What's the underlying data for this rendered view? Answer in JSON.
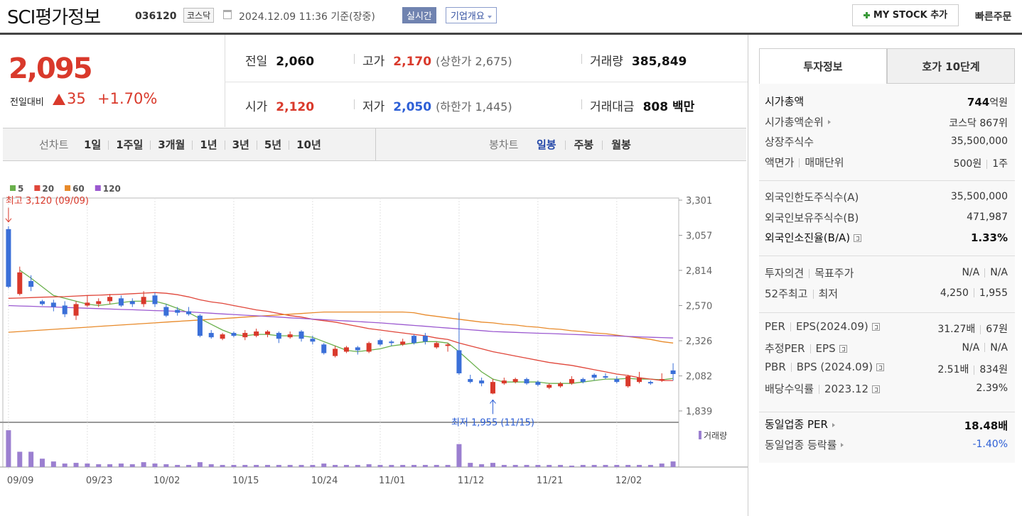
{
  "header": {
    "name": "SCI평가정보",
    "code": "036120",
    "market": "코스닥",
    "datetime": "2024.12.09 11:36",
    "basis": "기준(장중)",
    "realtime": "실시간",
    "overview": "기업개요",
    "mystock": "MY STOCK 추가",
    "quick_order": "빠른주문"
  },
  "quote": {
    "price": "2,095",
    "change_label": "전일대비",
    "change": "35",
    "change_rate": "+1.70%",
    "up_color": "#d9392b",
    "fields": [
      {
        "label": "전일",
        "value": "2,060",
        "color": "#111111"
      },
      {
        "label": "고가",
        "value": "2,170",
        "note": "(상한가 2,675)",
        "color": "#d9392b"
      },
      {
        "label": "거래량",
        "value": "385,849",
        "color": "#111111"
      },
      {
        "label": "시가",
        "value": "2,120",
        "color": "#d9392b"
      },
      {
        "label": "저가",
        "value": "2,050",
        "note": "(하한가 1,445)",
        "color": "#2d5fd6"
      },
      {
        "label": "거래대금",
        "value": "808 백만",
        "color": "#111111"
      }
    ]
  },
  "chart_tabs": {
    "line_label": "선차트",
    "line_periods": [
      "1일",
      "1주일",
      "3개월",
      "1년",
      "3년",
      "5년",
      "10년"
    ],
    "candle_label": "봉차트",
    "candle_periods": [
      "일봉",
      "주봉",
      "월봉"
    ],
    "active_candle": 0
  },
  "chart_data": {
    "type": "candlestick",
    "categories": [
      "09/09",
      null,
      null,
      null,
      null,
      null,
      null,
      "09/23",
      null,
      null,
      null,
      null,
      null,
      "10/02",
      null,
      null,
      null,
      null,
      null,
      null,
      "10/15",
      null,
      null,
      null,
      null,
      null,
      null,
      "10/24",
      null,
      null,
      null,
      null,
      null,
      "11/01",
      null,
      null,
      null,
      null,
      null,
      null,
      "11/12",
      null,
      null,
      null,
      null,
      null,
      null,
      "11/21",
      null,
      null,
      null,
      null,
      null,
      null,
      "12/02",
      null,
      null,
      null,
      null,
      null
    ],
    "open": [
      3100,
      2650,
      2740,
      2600,
      2590,
      2570,
      2500,
      2570,
      2580,
      2600,
      2620,
      2600,
      2580,
      2640,
      2560,
      2540,
      2530,
      2500,
      2380,
      2340,
      2380,
      2350,
      2360,
      2370,
      2380,
      2350,
      2390,
      2340,
      2300,
      2220,
      2250,
      2280,
      2250,
      2330,
      2320,
      2300,
      2360,
      2360,
      2280,
      2290,
      2260,
      2060,
      2050,
      1960,
      2030,
      2040,
      2060,
      2040,
      2000,
      2010,
      2030,
      2060,
      2090,
      2080,
      2060,
      2010,
      2040,
      2040,
      2050,
      2120
    ],
    "high": [
      3120,
      2840,
      2780,
      2610,
      2610,
      2600,
      2600,
      2640,
      2620,
      2650,
      2640,
      2620,
      2670,
      2660,
      2580,
      2560,
      2560,
      2510,
      2400,
      2380,
      2390,
      2400,
      2410,
      2400,
      2390,
      2390,
      2400,
      2360,
      2310,
      2290,
      2290,
      2290,
      2320,
      2340,
      2330,
      2340,
      2370,
      2380,
      2320,
      2310,
      2520,
      2090,
      2070,
      2060,
      2070,
      2070,
      2070,
      2050,
      2030,
      2040,
      2080,
      2070,
      2100,
      2100,
      2080,
      2090,
      2110,
      2050,
      2100,
      2170
    ],
    "low": [
      2690,
      2640,
      2670,
      2570,
      2530,
      2490,
      2470,
      2560,
      2560,
      2580,
      2560,
      2560,
      2560,
      2560,
      2490,
      2500,
      2500,
      2350,
      2340,
      2330,
      2350,
      2330,
      2350,
      2350,
      2310,
      2340,
      2320,
      2300,
      2230,
      2210,
      2240,
      2230,
      2240,
      2290,
      2290,
      2290,
      2300,
      2300,
      2270,
      2250,
      2090,
      2030,
      2010,
      1955,
      2020,
      2030,
      2020,
      2010,
      1990,
      2000,
      2020,
      2030,
      2050,
      2060,
      2030,
      2000,
      2030,
      2020,
      2040,
      2050
    ],
    "close": [
      2700,
      2800,
      2700,
      2580,
      2560,
      2510,
      2580,
      2590,
      2600,
      2630,
      2570,
      2580,
      2630,
      2580,
      2500,
      2520,
      2510,
      2360,
      2350,
      2370,
      2360,
      2380,
      2390,
      2390,
      2340,
      2370,
      2340,
      2320,
      2240,
      2270,
      2280,
      2260,
      2310,
      2300,
      2310,
      2320,
      2310,
      2320,
      2310,
      2300,
      2100,
      2040,
      2030,
      2040,
      2050,
      2060,
      2030,
      2020,
      2020,
      2030,
      2060,
      2040,
      2070,
      2070,
      2040,
      2080,
      2070,
      2030,
      2060,
      2095
    ],
    "up_color": "#d9392b",
    "down_color": "#3a6fd8",
    "ylim": [
      1770,
      3360
    ],
    "yticks": [
      {
        "value": 3301,
        "label": "3,301"
      },
      {
        "value": 3057,
        "label": "3,057"
      },
      {
        "value": 2814,
        "label": "2,814"
      },
      {
        "value": 2570,
        "label": "2,570"
      },
      {
        "value": 2326,
        "label": "2,326"
      },
      {
        "value": 2082,
        "label": "2,082"
      },
      {
        "value": 1839,
        "label": "1,839"
      }
    ],
    "annotations": [
      {
        "text": "최고 3,120 (09/09)",
        "color": "#d9392b",
        "kind": "high"
      },
      {
        "text": "최저 1,955 (11/15)",
        "color": "#2d5fd6",
        "kind": "low"
      }
    ],
    "series": [
      {
        "name": "5",
        "color": "#6ab04c",
        "values": [
          null,
          2815,
          2760,
          2700,
          2640,
          2620,
          2600,
          2580,
          2570,
          2580,
          2590,
          2600,
          2600,
          2600,
          2580,
          2550,
          2520,
          2480,
          2440,
          2400,
          2370,
          2360,
          2370,
          2370,
          2360,
          2360,
          2360,
          2350,
          2320,
          2290,
          2260,
          2250,
          2260,
          2270,
          2290,
          2300,
          2310,
          2320,
          2320,
          2310,
          2250,
          2180,
          2110,
          2060,
          2040,
          2040,
          2040,
          2040,
          2030,
          2030,
          2030,
          2040,
          2050,
          2060,
          2060,
          2065,
          2060,
          2060,
          2055,
          2065
        ]
      },
      {
        "name": "20",
        "color": "#e0463a",
        "values": [
          2620,
          2622,
          2625,
          2628,
          2630,
          2632,
          2636,
          2640,
          2642,
          2645,
          2648,
          2652,
          2656,
          2660,
          2655,
          2645,
          2630,
          2610,
          2595,
          2585,
          2570,
          2555,
          2540,
          2530,
          2515,
          2500,
          2490,
          2475,
          2465,
          2455,
          2440,
          2425,
          2410,
          2400,
          2390,
          2380,
          2370,
          2360,
          2345,
          2335,
          2310,
          2290,
          2270,
          2250,
          2235,
          2220,
          2205,
          2190,
          2175,
          2165,
          2155,
          2140,
          2125,
          2110,
          2095,
          2085,
          2070,
          2060,
          2050,
          2050
        ]
      },
      {
        "name": "60",
        "color": "#e88a2a",
        "values": [
          2385,
          2390,
          2395,
          2400,
          2405,
          2410,
          2415,
          2420,
          2425,
          2430,
          2435,
          2440,
          2445,
          2450,
          2455,
          2460,
          2465,
          2470,
          2475,
          2480,
          2485,
          2490,
          2495,
          2500,
          2505,
          2510,
          2515,
          2520,
          2525,
          2525,
          2525,
          2525,
          2525,
          2525,
          2525,
          2525,
          2520,
          2505,
          2495,
          2485,
          2475,
          2465,
          2455,
          2450,
          2440,
          2435,
          2425,
          2420,
          2410,
          2405,
          2395,
          2390,
          2380,
          2375,
          2365,
          2355,
          2345,
          2335,
          2320,
          2310
        ]
      },
      {
        "name": "120",
        "color": "#9b59d0",
        "values": [
          2570,
          2567,
          2565,
          2562,
          2560,
          2557,
          2554,
          2551,
          2549,
          2546,
          2543,
          2541,
          2538,
          2535,
          2533,
          2530,
          2526,
          2521,
          2517,
          2512,
          2508,
          2503,
          2499,
          2494,
          2490,
          2485,
          2481,
          2476,
          2472,
          2467,
          2463,
          2459,
          2454,
          2450,
          2444,
          2438,
          2432,
          2426,
          2420,
          2414,
          2408,
          2402,
          2396,
          2390,
          2387,
          2384,
          2381,
          2378,
          2376,
          2373,
          2370,
          2367,
          2364,
          2361,
          2359,
          2356,
          2353,
          2350,
          2348,
          2345
        ]
      }
    ],
    "volume": {
      "name": "거래량",
      "color": "#9b7fd0",
      "ylim": [
        0,
        2600000
      ],
      "values": [
        2544000,
        1056000,
        1056000,
        576000,
        384000,
        240000,
        288000,
        240000,
        192000,
        192000,
        240000,
        192000,
        336000,
        240000,
        192000,
        144000,
        144000,
        336000,
        192000,
        144000,
        144000,
        144000,
        144000,
        144000,
        144000,
        144000,
        144000,
        144000,
        240000,
        144000,
        144000,
        144000,
        192000,
        144000,
        144000,
        144000,
        144000,
        144000,
        144000,
        144000,
        1584000,
        288000,
        192000,
        288000,
        144000,
        144000,
        144000,
        144000,
        144000,
        144000,
        96000,
        144000,
        144000,
        144000,
        144000,
        144000,
        144000,
        144000,
        240000,
        385849
      ]
    }
  },
  "info": {
    "tabs": [
      "투자정보",
      "호가 10단계"
    ],
    "active_tab": 0,
    "sections": [
      {
        "rows": [
          {
            "label": [
              "시가총액"
            ],
            "value": [
              "744",
              "억원"
            ],
            "strong": true
          },
          {
            "label": [
              "시가총액순위"
            ],
            "arrow": true,
            "value": [
              "코스닥 867위"
            ]
          },
          {
            "label": [
              "상장주식수"
            ],
            "value": [
              "35,500,000"
            ]
          },
          {
            "label": [
              "액면가",
              "매매단위"
            ],
            "value": [
              "500원",
              "1주"
            ]
          }
        ]
      },
      {
        "rows": [
          {
            "label": [
              "외국인한도주식수(A)"
            ],
            "value": [
              "35,500,000"
            ]
          },
          {
            "label": [
              "외국인보유주식수(B)"
            ],
            "value": [
              "471,987"
            ]
          },
          {
            "label": [
              "외국인소진율(B/A)"
            ],
            "help": true,
            "value": [
              "1.33%"
            ],
            "strong": true
          }
        ]
      },
      {
        "rows": [
          {
            "label": [
              "투자의견",
              "목표주가"
            ],
            "value": [
              "N/A",
              "N/A"
            ]
          },
          {
            "label": [
              "52주최고",
              "최저"
            ],
            "value": [
              "4,250",
              "1,955"
            ]
          }
        ]
      },
      {
        "rows": [
          {
            "label": [
              "PER",
              "EPS(2024.09)"
            ],
            "help": true,
            "value": [
              "31.27배",
              "67원"
            ]
          },
          {
            "label": [
              "추정PER",
              "EPS"
            ],
            "help": true,
            "value": [
              "N/A",
              "N/A"
            ]
          },
          {
            "label": [
              "PBR",
              "BPS (2024.09)"
            ],
            "help": true,
            "value": [
              "2.51배",
              "834원"
            ]
          },
          {
            "label": [
              "배당수익률",
              "2023.12"
            ],
            "help": true,
            "value": [
              "2.39%"
            ]
          }
        ]
      },
      {
        "rows": [
          {
            "label": [
              "동일업종 PER"
            ],
            "arrow": true,
            "value": [
              "18.48배"
            ],
            "strong": true
          },
          {
            "label": [
              "동일업종 등락률"
            ],
            "arrow": true,
            "value": [
              "-1.40%"
            ],
            "value_color": "#2d5fd6"
          }
        ]
      }
    ]
  }
}
